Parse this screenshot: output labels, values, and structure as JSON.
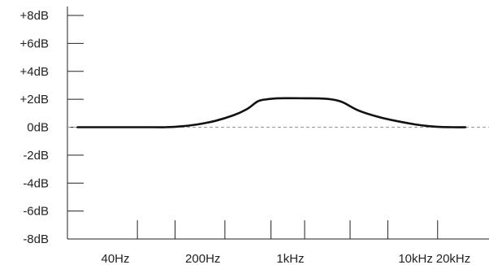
{
  "chart_data": {
    "type": "line",
    "title": "",
    "xlabel": "",
    "ylabel": "",
    "x_scale": "log",
    "xlim": [
      20,
      25000
    ],
    "ylim": [
      -8,
      8
    ],
    "grid": false,
    "y_ticks": [
      {
        "value": 8,
        "label": "+8dB"
      },
      {
        "value": 6,
        "label": "+6dB"
      },
      {
        "value": 4,
        "label": "+4dB"
      },
      {
        "value": 2,
        "label": "+2dB"
      },
      {
        "value": 0,
        "label": "0dB"
      },
      {
        "value": -2,
        "label": "-2dB"
      },
      {
        "value": -4,
        "label": "-4dB"
      },
      {
        "value": -6,
        "label": "-6dB"
      },
      {
        "value": -8,
        "label": "-8dB"
      }
    ],
    "x_tick_marks": [
      60,
      120,
      300,
      700,
      1300,
      3000,
      6000,
      15000
    ],
    "x_tick_labels": [
      {
        "value": 40,
        "label": "40Hz"
      },
      {
        "value": 200,
        "label": "200Hz"
      },
      {
        "value": 1000,
        "label": "1kHz"
      },
      {
        "value": 10000,
        "label": "10kHz"
      },
      {
        "value": 20000,
        "label": "20kHz"
      }
    ],
    "reference_line": {
      "value": 0,
      "style": "dashed",
      "color": "#999999"
    },
    "series": [
      {
        "color": "#111111",
        "x": [
          20,
          80,
          100,
          130,
          180,
          250,
          350,
          450,
          550,
          650,
          800,
          1000,
          1300,
          1700,
          2100,
          2600,
          3500,
          5000,
          7000,
          10000,
          13000,
          16000,
          20000,
          25000
        ],
        "y": [
          0,
          0,
          0,
          0.05,
          0.2,
          0.45,
          0.85,
          1.3,
          1.85,
          2.0,
          2.07,
          2.08,
          2.07,
          2.06,
          2.0,
          1.8,
          1.2,
          0.75,
          0.45,
          0.2,
          0.07,
          0.02,
          0,
          0
        ]
      }
    ]
  }
}
